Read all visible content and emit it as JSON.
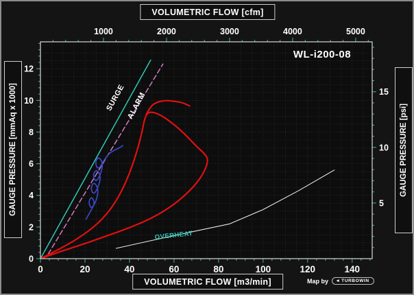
{
  "title": "WL-i200-08",
  "credit": {
    "map_by": "Map by",
    "logo_text": "TURBOWIN"
  },
  "chart_data": {
    "type": "line",
    "title": "WL-i200-08",
    "grid": true,
    "x_bottom": {
      "label": "VOLUMETRIC FLOW [m3/min]",
      "ticks": [
        0,
        20,
        40,
        60,
        80,
        100,
        120,
        140
      ],
      "range": [
        0,
        149
      ]
    },
    "x_top": {
      "label": "VOLUMETRIC FLOW [cfm]",
      "ticks": [
        1000,
        2000,
        3000,
        4000,
        5000
      ],
      "to_m3min": 0.0283168
    },
    "y_left": {
      "label": "GAUGE PRESSURE [mmAq x 1000]",
      "ticks": [
        0,
        2,
        4,
        6,
        8,
        10,
        12
      ],
      "range": [
        0,
        13.7
      ]
    },
    "y_right": {
      "label": "GAUGE PRESSURE [psi]",
      "ticks": [
        5,
        10,
        15
      ],
      "to_mmAq1000": 0.70307
    },
    "series": [
      {
        "name": "surge-line",
        "color": "#2fc9b9",
        "width": 1.5,
        "dash": null,
        "smooth": false,
        "points": [
          [
            0,
            0
          ],
          [
            49.5,
            12.55
          ]
        ]
      },
      {
        "name": "alarm-line",
        "color": "#cf7ec2",
        "width": 1.5,
        "dash": "7,4",
        "smooth": false,
        "points": [
          [
            3.5,
            0.3
          ],
          [
            55,
            12.3
          ]
        ]
      },
      {
        "name": "performance-envelope",
        "color": "#e01010",
        "width": 2.2,
        "dash": null,
        "smooth": true,
        "points": [
          [
            0,
            0
          ],
          [
            10,
            0.7
          ],
          [
            20,
            1.55
          ],
          [
            28,
            2.5
          ],
          [
            34,
            3.6
          ],
          [
            39,
            5.0
          ],
          [
            43,
            6.6
          ],
          [
            45.5,
            7.9
          ],
          [
            47,
            9.0
          ],
          [
            49,
            9.3
          ],
          [
            53,
            9.15
          ],
          [
            58,
            8.7
          ],
          [
            64,
            8.0
          ],
          [
            70,
            7.1
          ],
          [
            74,
            6.6
          ],
          [
            75.5,
            6.2
          ],
          [
            73,
            5.3
          ],
          [
            68,
            4.4
          ],
          [
            60,
            3.4
          ],
          [
            50,
            2.55
          ],
          [
            40,
            1.95
          ],
          [
            30,
            1.45
          ],
          [
            20,
            0.95
          ],
          [
            10,
            0.5
          ],
          [
            0,
            0
          ]
        ]
      },
      {
        "name": "performance-top-hook",
        "color": "#e01010",
        "width": 2.2,
        "dash": null,
        "smooth": true,
        "points": [
          [
            47.5,
            9.1
          ],
          [
            49.5,
            9.65
          ],
          [
            52.5,
            9.9
          ],
          [
            56,
            10.0
          ],
          [
            60,
            9.95
          ],
          [
            64,
            9.85
          ],
          [
            67,
            9.65
          ]
        ]
      },
      {
        "name": "test-data-squiggle",
        "color": "#3a49c8",
        "width": 1.7,
        "dash": null,
        "smooth": true,
        "points": [
          [
            20.5,
            2.5
          ],
          [
            22.5,
            3.0
          ],
          [
            24.5,
            3.5
          ],
          [
            23,
            3.95
          ],
          [
            21.5,
            3.55
          ],
          [
            23,
            3.1
          ],
          [
            25.5,
            3.8
          ],
          [
            26,
            4.45
          ],
          [
            24,
            4.85
          ],
          [
            22.5,
            4.45
          ],
          [
            24,
            4.0
          ],
          [
            26.5,
            4.7
          ],
          [
            27,
            5.3
          ],
          [
            25,
            5.65
          ],
          [
            23.5,
            5.25
          ],
          [
            25,
            4.8
          ],
          [
            27.5,
            5.5
          ],
          [
            28,
            6.1
          ],
          [
            26,
            6.45
          ],
          [
            24.5,
            6.05
          ],
          [
            26,
            5.6
          ],
          [
            28.5,
            6.2
          ],
          [
            30.5,
            6.6
          ],
          [
            33,
            6.85
          ],
          [
            35.5,
            7.0
          ],
          [
            37,
            7.15
          ]
        ]
      },
      {
        "name": "overheat-line",
        "color": "#e8e8e8",
        "width": 1.1,
        "dash": null,
        "smooth": false,
        "points": [
          [
            34,
            0.65
          ],
          [
            50,
            1.15
          ],
          [
            70,
            1.75
          ],
          [
            85,
            2.2
          ],
          [
            100,
            3.1
          ],
          [
            116,
            4.3
          ],
          [
            132,
            5.6
          ]
        ]
      }
    ],
    "annotations": [
      {
        "text": "SURGE",
        "x": 34.5,
        "y": 10.1,
        "rotation": -61,
        "color": "#ffffff",
        "size": 11
      },
      {
        "text": "ALARM",
        "x": 44,
        "y": 9.6,
        "rotation": -62,
        "color": "#ffffff",
        "size": 11
      },
      {
        "text": "OVERHEAT",
        "x": 60,
        "y": 1.35,
        "rotation": -6,
        "color": "#2fc9b9",
        "size": 9.5
      }
    ]
  }
}
